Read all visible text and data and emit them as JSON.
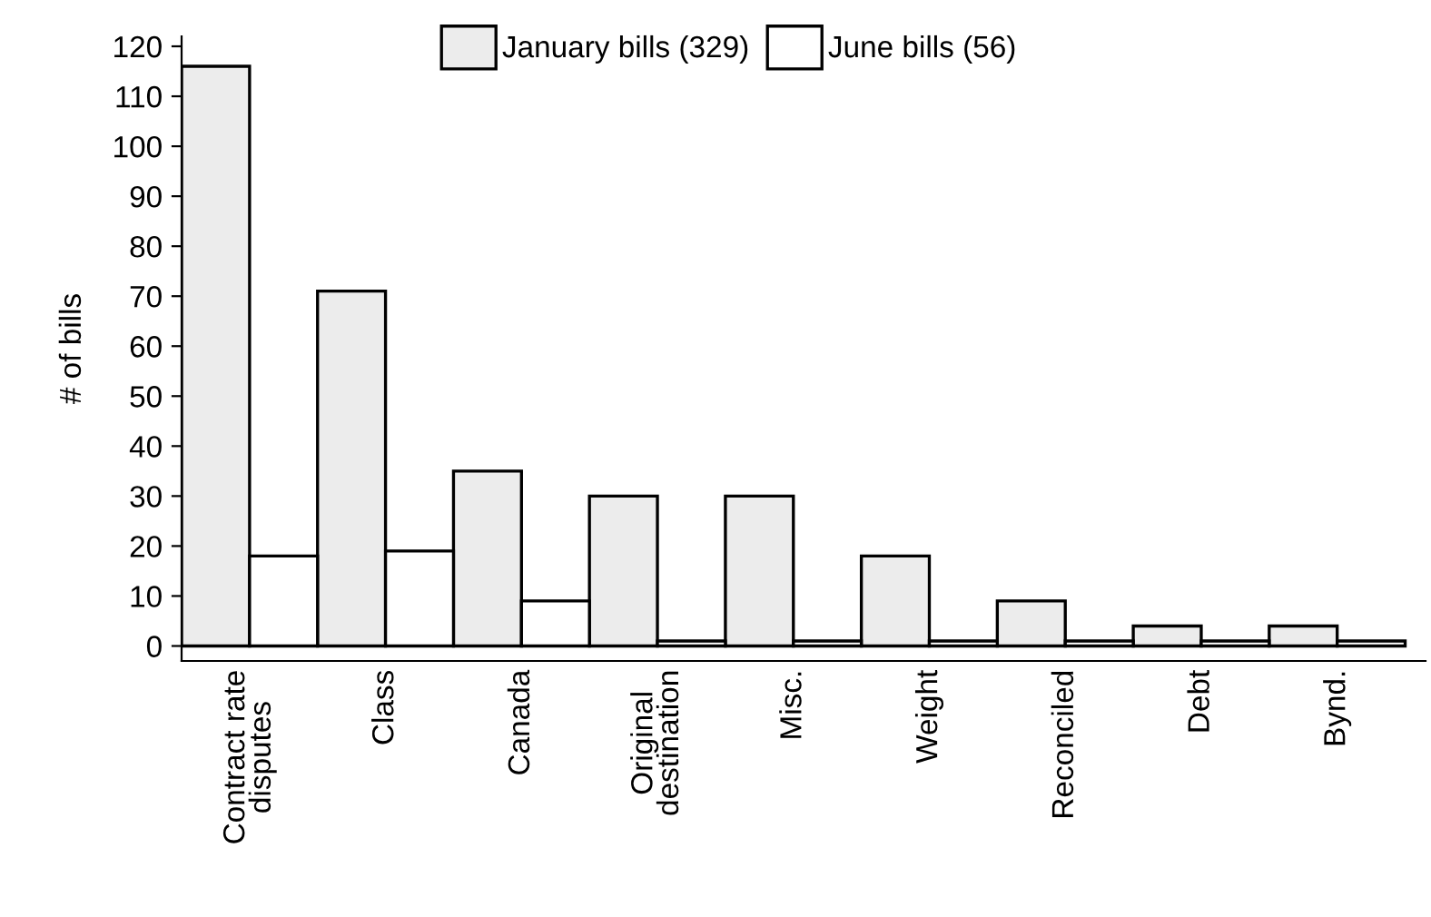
{
  "chart_data": {
    "type": "bar",
    "ylabel": "# of bills",
    "categories": [
      "Contract rate\ndisputes",
      "Class",
      "Canada",
      "Original\ndestination",
      "Misc.",
      "Weight",
      "Reconciled",
      "Debt",
      "Bynd."
    ],
    "series": [
      {
        "name": "January bills (329)",
        "color": "#ececec",
        "values": [
          116,
          71,
          35,
          30,
          30,
          18,
          9,
          4,
          4
        ]
      },
      {
        "name": "June bills (56)",
        "color": "#ffffff",
        "values": [
          18,
          19,
          9,
          1,
          1,
          1,
          1,
          1,
          1
        ]
      }
    ],
    "ylim": [
      -3,
      122
    ],
    "yticks": [
      0,
      10,
      20,
      30,
      40,
      50,
      60,
      70,
      80,
      90,
      100,
      110,
      120
    ],
    "grid": false,
    "legend": "top"
  }
}
